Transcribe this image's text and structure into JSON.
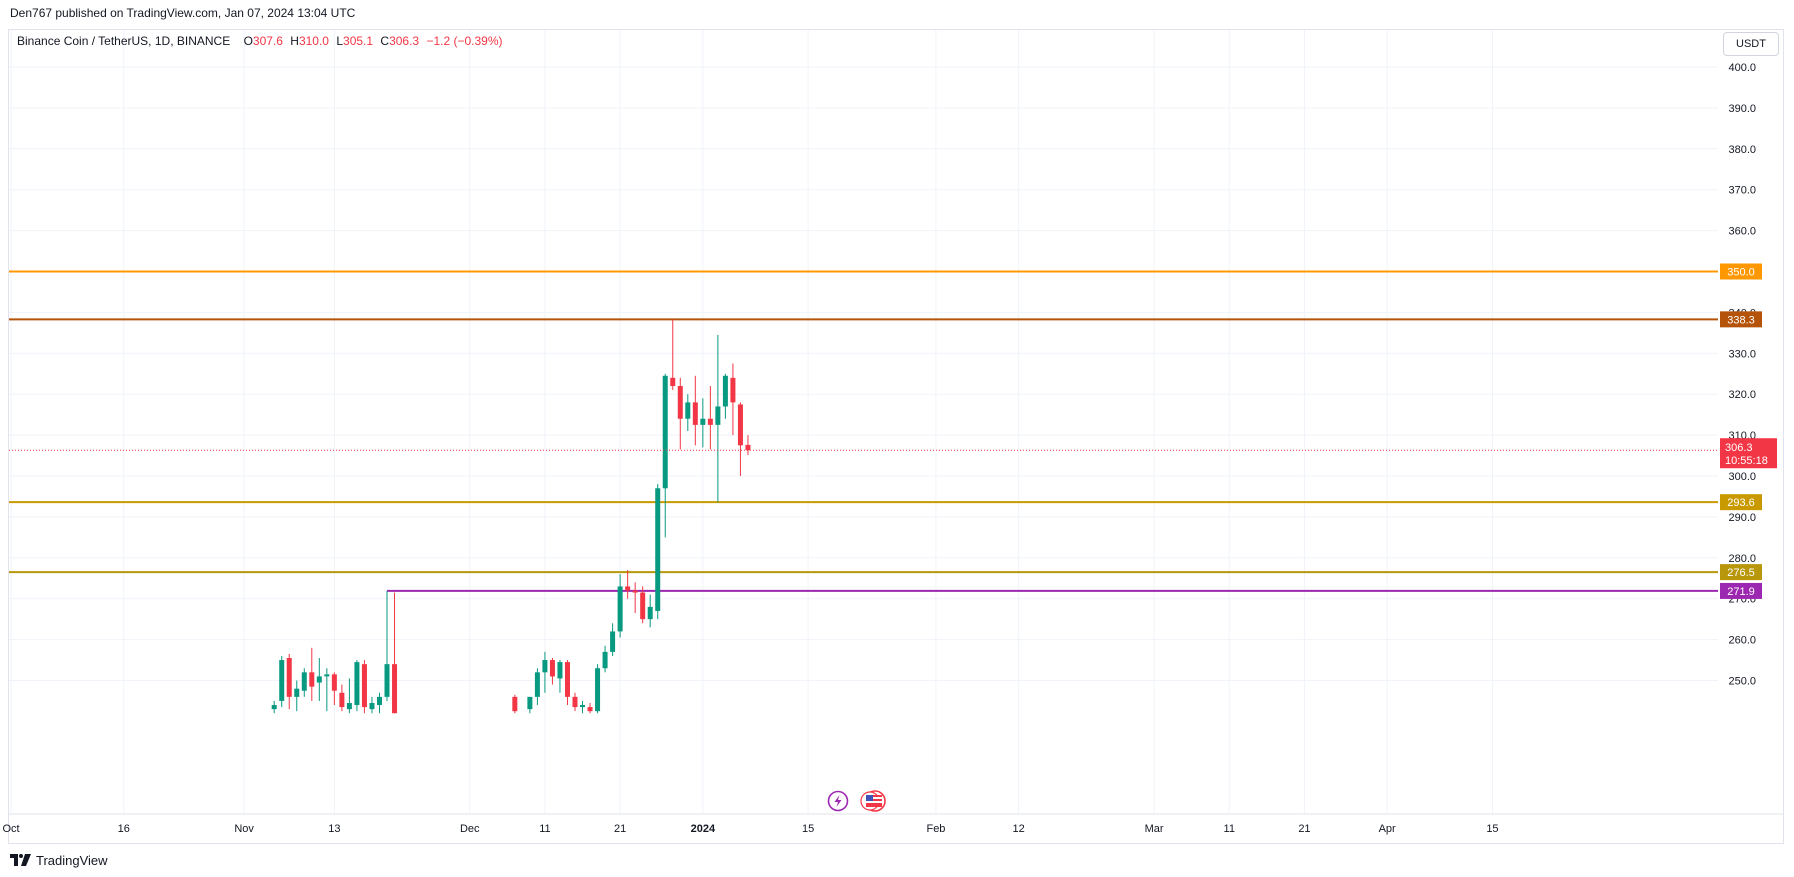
{
  "header": {
    "published": "Den767 published on TradingView.com, Jan 07, 2024 13:04 UTC"
  },
  "legend": {
    "symbol": "Binance Coin / TetherUS, 1D, BINANCE",
    "open_label": "O",
    "open": "307.6",
    "high_label": "H",
    "high": "310.0",
    "low_label": "L",
    "low": "305.1",
    "close_label": "C",
    "close": "306.3",
    "change": "−1.2 (−0.39%)"
  },
  "currency_button": "USDT",
  "footer": {
    "brand": "TradingView"
  },
  "colors": {
    "up": "#089981",
    "down": "#f23645",
    "line_350": "#ff9800",
    "line_338": "#b45309",
    "line_293": "#c99a00",
    "line_276": "#b8970b",
    "line_271": "#9c27b0",
    "grid": "#f0f3fa"
  },
  "chart_data": {
    "type": "candlestick",
    "y_axis": {
      "range": [
        242.0,
        406.5
      ],
      "ticks": [
        "400.0",
        "390.0",
        "380.0",
        "370.0",
        "360.0",
        "340.0",
        "330.0",
        "320.0",
        "310.0",
        "300.0",
        "290.0",
        "280.0",
        "270.0",
        "260.0",
        "250.0"
      ],
      "tick_values": [
        400,
        390,
        380,
        370,
        360,
        340,
        330,
        320,
        310,
        300,
        290,
        280,
        270,
        260,
        250
      ]
    },
    "x_axis": {
      "ticks": [
        {
          "label": "Oct",
          "day": 0
        },
        {
          "label": "16",
          "day": 15
        },
        {
          "label": "Nov",
          "day": 31
        },
        {
          "label": "13",
          "day": 43
        },
        {
          "label": "Dec",
          "day": 61
        },
        {
          "label": "11",
          "day": 71
        },
        {
          "label": "21",
          "day": 81
        },
        {
          "label": "2024",
          "day": 92,
          "bold": true
        },
        {
          "label": "15",
          "day": 106
        },
        {
          "label": "Feb",
          "day": 123
        },
        {
          "label": "12",
          "day": 134
        },
        {
          "label": "Mar",
          "day": 152
        },
        {
          "label": "11",
          "day": 162
        },
        {
          "label": "21",
          "day": 172
        },
        {
          "label": "Apr",
          "day": 183
        },
        {
          "label": "15",
          "day": 197
        }
      ]
    },
    "horizontal_levels": [
      {
        "value": 350.0,
        "label": "350.0",
        "color": "#ff9800"
      },
      {
        "value": 338.3,
        "label": "338.3",
        "color": "#b45309"
      },
      {
        "value": 293.6,
        "label": "293.6",
        "color": "#c99a00"
      },
      {
        "value": 276.5,
        "label": "276.5",
        "color": "#b8970b"
      },
      {
        "value": 271.9,
        "label": "271.9",
        "color": "#9c27b0",
        "start_day": 50
      }
    ],
    "last_price": {
      "value": 306.3,
      "label": "306.3",
      "countdown": "10:55:18"
    },
    "candles": [
      {
        "day": 35,
        "o": 243.0,
        "h": 245.0,
        "l": 242.0,
        "c": 244.0
      },
      {
        "day": 36,
        "o": 245.0,
        "h": 256.0,
        "l": 243.5,
        "c": 255.0
      },
      {
        "day": 37,
        "o": 255.5,
        "h": 256.5,
        "l": 243.0,
        "c": 246.0
      },
      {
        "day": 38,
        "o": 246.0,
        "h": 250.0,
        "l": 242.5,
        "c": 248.0
      },
      {
        "day": 39,
        "o": 247.5,
        "h": 253.0,
        "l": 246.0,
        "c": 252.0
      },
      {
        "day": 40,
        "o": 252.0,
        "h": 258.0,
        "l": 245.0,
        "c": 248.5
      },
      {
        "day": 41,
        "o": 249.5,
        "h": 255.5,
        "l": 245.0,
        "c": 251.0
      },
      {
        "day": 42,
        "o": 251.0,
        "h": 253.0,
        "l": 242.5,
        "c": 251.5
      },
      {
        "day": 43,
        "o": 251.5,
        "h": 252.0,
        "l": 244.0,
        "c": 247.5
      },
      {
        "day": 44,
        "o": 247.0,
        "h": 249.0,
        "l": 242.5,
        "c": 243.5
      },
      {
        "day": 45,
        "o": 243.0,
        "h": 250.5,
        "l": 242.0,
        "c": 244.5
      },
      {
        "day": 46,
        "o": 244.0,
        "h": 255.0,
        "l": 242.5,
        "c": 254.5
      },
      {
        "day": 47,
        "o": 254.0,
        "h": 255.0,
        "l": 242.0,
        "c": 243.5
      },
      {
        "day": 48,
        "o": 243.0,
        "h": 246.0,
        "l": 242.0,
        "c": 244.5
      },
      {
        "day": 49,
        "o": 244.0,
        "h": 247.0,
        "l": 242.0,
        "c": 246.0
      },
      {
        "day": 50,
        "o": 246.0,
        "h": 271.9,
        "l": 245.0,
        "c": 254.0
      },
      {
        "day": 51,
        "o": 254.0,
        "h": 271.5,
        "l": 242.0,
        "c": 242.0
      },
      {
        "day": 67,
        "o": 246.0,
        "h": 246.5,
        "l": 242.0,
        "c": 242.5
      },
      {
        "day": 69,
        "o": 243.0,
        "h": 245.0,
        "l": 242.0,
        "c": 246.0
      },
      {
        "day": 70,
        "o": 246.0,
        "h": 253.0,
        "l": 244.0,
        "c": 252.0
      },
      {
        "day": 71,
        "o": 252.0,
        "h": 257.0,
        "l": 247.0,
        "c": 255.0
      },
      {
        "day": 72,
        "o": 255.0,
        "h": 255.5,
        "l": 249.0,
        "c": 251.0
      },
      {
        "day": 73,
        "o": 250.5,
        "h": 255.0,
        "l": 247.0,
        "c": 254.5
      },
      {
        "day": 74,
        "o": 254.5,
        "h": 255.0,
        "l": 244.0,
        "c": 246.0
      },
      {
        "day": 75,
        "o": 246.0,
        "h": 247.0,
        "l": 242.5,
        "c": 243.5
      },
      {
        "day": 76,
        "o": 243.5,
        "h": 245.0,
        "l": 242.0,
        "c": 244.0
      },
      {
        "day": 77,
        "o": 243.5,
        "h": 244.5,
        "l": 242.0,
        "c": 242.5
      },
      {
        "day": 78,
        "o": 242.5,
        "h": 254.0,
        "l": 242.0,
        "c": 253.0
      },
      {
        "day": 79,
        "o": 253.0,
        "h": 258.5,
        "l": 252.0,
        "c": 257.0
      },
      {
        "day": 80,
        "o": 257.0,
        "h": 264.0,
        "l": 256.0,
        "c": 262.0
      },
      {
        "day": 81,
        "o": 262.0,
        "h": 276.0,
        "l": 260.5,
        "c": 273.0
      },
      {
        "day": 82,
        "o": 273.0,
        "h": 277.0,
        "l": 270.0,
        "c": 272.0
      },
      {
        "day": 83,
        "o": 272.0,
        "h": 274.0,
        "l": 266.5,
        "c": 271.5
      },
      {
        "day": 84,
        "o": 271.5,
        "h": 273.0,
        "l": 264.0,
        "c": 265.0
      },
      {
        "day": 85,
        "o": 265.0,
        "h": 271.0,
        "l": 263.0,
        "c": 268.0
      },
      {
        "day": 86,
        "o": 267.0,
        "h": 298.0,
        "l": 265.0,
        "c": 297.0
      },
      {
        "day": 87,
        "o": 297.0,
        "h": 325.0,
        "l": 285.0,
        "c": 324.5
      },
      {
        "day": 88,
        "o": 324.0,
        "h": 338.3,
        "l": 321.0,
        "c": 322.0
      },
      {
        "day": 89,
        "o": 322.0,
        "h": 324.0,
        "l": 306.5,
        "c": 314.0
      },
      {
        "day": 90,
        "o": 314.0,
        "h": 320.0,
        "l": 311.0,
        "c": 318.0
      },
      {
        "day": 91,
        "o": 318.0,
        "h": 324.5,
        "l": 307.5,
        "c": 312.5
      },
      {
        "day": 92,
        "o": 312.5,
        "h": 319.0,
        "l": 307.0,
        "c": 314.0
      },
      {
        "day": 93,
        "o": 314.0,
        "h": 322.0,
        "l": 306.5,
        "c": 312.5
      },
      {
        "day": 94,
        "o": 312.5,
        "h": 334.5,
        "l": 293.6,
        "c": 317.0
      },
      {
        "day": 95,
        "o": 317.0,
        "h": 325.0,
        "l": 314.0,
        "c": 324.5
      },
      {
        "day": 96,
        "o": 324.0,
        "h": 327.5,
        "l": 310.0,
        "c": 318.0
      },
      {
        "day": 97,
        "o": 317.5,
        "h": 318.0,
        "l": 300.0,
        "c": 307.5
      },
      {
        "day": 98,
        "o": 307.6,
        "h": 310.0,
        "l": 305.1,
        "c": 306.3
      }
    ]
  }
}
